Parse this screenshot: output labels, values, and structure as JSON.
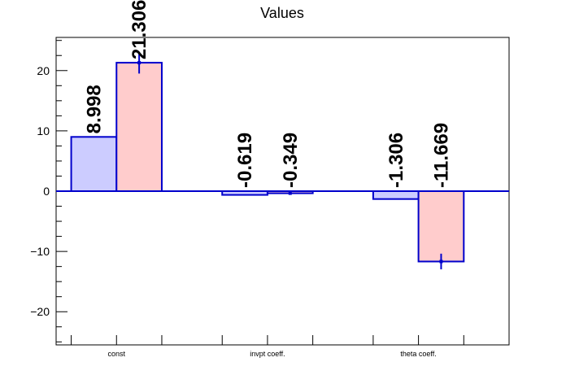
{
  "chart_data": {
    "type": "bar",
    "title": "Values",
    "xlabel": "",
    "ylabel": "",
    "categories": [
      "const",
      "invpt coeff.",
      "theta coeff."
    ],
    "series": [
      {
        "values": [
          8.998,
          -0.619,
          -1.306
        ],
        "value_labels": [
          "8.998",
          "-0.619",
          "-1.306"
        ],
        "errors": [
          0,
          0,
          0
        ],
        "fill": "#ccccff",
        "edge": "#0000cc"
      },
      {
        "values": [
          21.306,
          -0.349,
          -11.669
        ],
        "value_labels": [
          "21.306",
          "-0.349",
          "-11.669"
        ],
        "errors": [
          1.8,
          0.2,
          1.3
        ],
        "fill": "#ffcccc",
        "edge": "#0000cc"
      }
    ],
    "ylim": [
      -25.5,
      25.5
    ],
    "yticks": [
      -20,
      -10,
      0,
      10,
      20
    ],
    "ytick_labels": [
      "−20",
      "−10",
      "0",
      "10",
      "20"
    ],
    "grid": false,
    "legend": "none"
  }
}
